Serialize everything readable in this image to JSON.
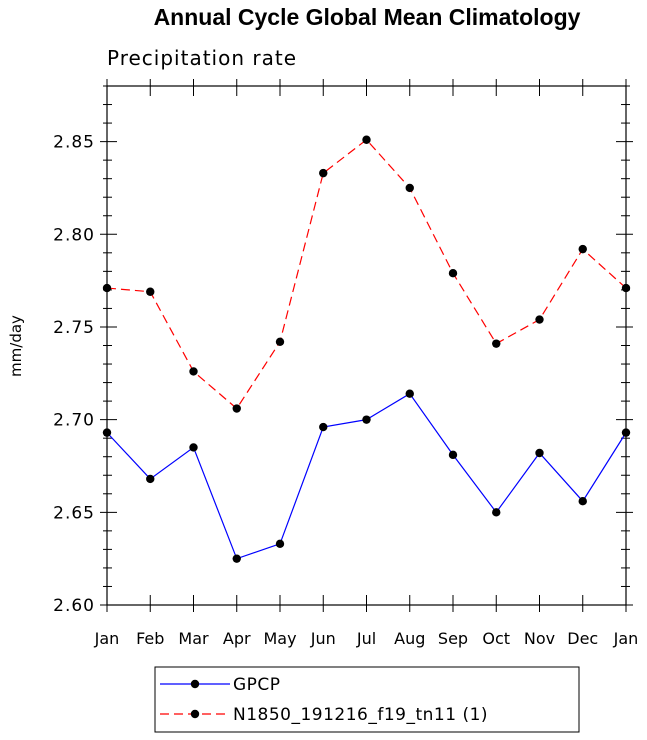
{
  "chart_data": {
    "type": "line",
    "title": "Annual Cycle Global Mean Climatology",
    "subtitle": "Precipitation rate",
    "xlabel": "",
    "ylabel": "mm/day",
    "categories": [
      "Jan",
      "Feb",
      "Mar",
      "Apr",
      "May",
      "Jun",
      "Jul",
      "Aug",
      "Sep",
      "Oct",
      "Nov",
      "Dec",
      "Jan"
    ],
    "ylim": [
      2.6,
      2.88
    ],
    "yticks": [
      2.6,
      2.65,
      2.7,
      2.75,
      2.8,
      2.85
    ],
    "ytick_labels": [
      "2.60",
      "2.65",
      "2.70",
      "2.75",
      "2.80",
      "2.85"
    ],
    "grid": false,
    "legend_position": "bottom-center",
    "series": [
      {
        "name": "GPCP",
        "color": "#0000ff",
        "line_style": "solid",
        "marker_color": "#000000",
        "values": [
          2.693,
          2.668,
          2.685,
          2.625,
          2.633,
          2.696,
          2.7,
          2.714,
          2.681,
          2.65,
          2.682,
          2.656,
          2.693
        ]
      },
      {
        "name": "N1850_191216_f19_tn11 (1)",
        "color": "#ff0000",
        "line_style": "dashed",
        "marker_color": "#000000",
        "values": [
          2.771,
          2.769,
          2.726,
          2.706,
          2.742,
          2.833,
          2.851,
          2.825,
          2.779,
          2.741,
          2.754,
          2.792,
          2.771
        ]
      }
    ]
  }
}
